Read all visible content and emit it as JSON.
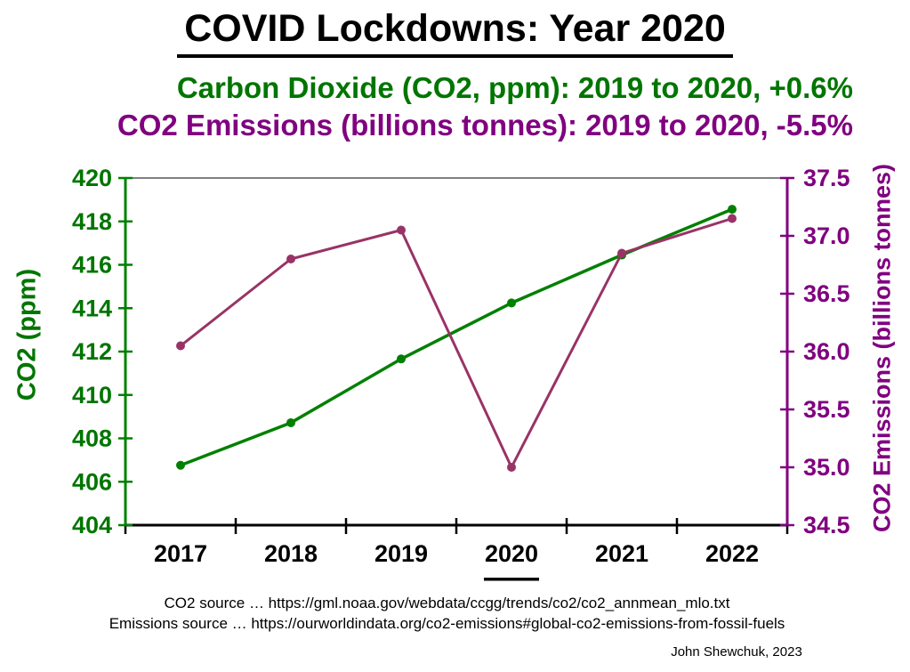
{
  "page": {
    "title": "COVID Lockdowns: Year 2020",
    "subtitle_co2": "Carbon Dioxide (CO2, ppm): 2019 to 2020, +0.6%",
    "subtitle_emissions": "CO2 Emissions (billions tonnes): 2019 to 2020, -5.5%",
    "source_co2": "CO2 source … https://gml.noaa.gov/webdata/ccgg/trends/co2/co2_annmean_mlo.txt",
    "source_emissions": "Emissions source … https://ourworldindata.org/co2-emissions#global-co2-emissions-from-fossil-fuels",
    "credit": "John Shewchuk, 2023"
  },
  "colors": {
    "co2_green": "#008000",
    "co2_text_green": "#007500",
    "emissions_axis_purple": "#800080",
    "emissions_line_plum": "#993366",
    "plot_top_border_gray": "#808080",
    "axis_black": "#000000"
  },
  "chart_data": {
    "type": "line",
    "title": "COVID Lockdowns: Year 2020",
    "categories": [
      "2017",
      "2018",
      "2019",
      "2020",
      "2021",
      "2022"
    ],
    "series": [
      {
        "name": "CO2 (ppm)",
        "axis": "left",
        "color": "#008000",
        "line_width": 3.5,
        "values": [
          406.76,
          408.72,
          411.66,
          414.24,
          416.45,
          418.56
        ]
      },
      {
        "name": "CO2 Emissions (billions tonnes)",
        "axis": "right",
        "color": "#993366",
        "line_width": 3,
        "values": [
          36.05,
          36.8,
          37.05,
          35.0,
          36.85,
          37.15
        ]
      }
    ],
    "left_axis": {
      "label": "CO2 (ppm)",
      "min": 404,
      "max": 420,
      "step": 2,
      "decimals": 0,
      "color": "#008000",
      "text_color": "#007500"
    },
    "right_axis": {
      "label": "CO2 Emissions (billions tonnes)",
      "min": 34.5,
      "max": 37.5,
      "step": 0.5,
      "decimals": 1,
      "color": "#800080",
      "text_color": "#800080"
    },
    "x_axis": {
      "color": "#000000",
      "highlight_category": "2020"
    },
    "grid": false,
    "legend": "none"
  }
}
